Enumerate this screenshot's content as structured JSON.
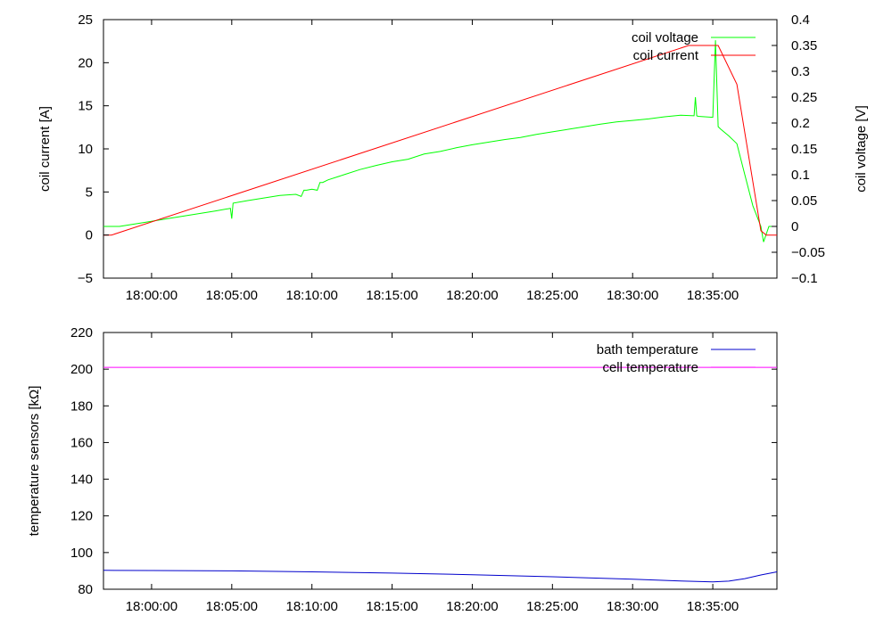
{
  "chart_data": [
    {
      "type": "line",
      "title": "",
      "xlabel": "",
      "ylabel": "coil current [A]",
      "y2label": "coil voltage [V]",
      "xlim": [
        "17:57:00",
        "18:39:00"
      ],
      "ylim": [
        -5,
        25
      ],
      "y2lim": [
        -0.1,
        0.4
      ],
      "x_ticks": [
        "18:00:00",
        "18:05:00",
        "18:10:00",
        "18:15:00",
        "18:20:00",
        "18:25:00",
        "18:30:00",
        "18:35:00"
      ],
      "y_ticks": [
        "−5",
        "0",
        "5",
        "10",
        "15",
        "20",
        "25"
      ],
      "y2_ticks": [
        "−0.1",
        "−0.05",
        "0",
        "0.05",
        "0.1",
        "0.15",
        "0.2",
        "0.25",
        "0.3",
        "0.35",
        "0.4"
      ],
      "legend_position": "top-right",
      "grid": false,
      "series": [
        {
          "name": "coil voltage",
          "axis": "y2",
          "color": "#00ff00",
          "x": [
            "17:57:00",
            "17:58:00",
            "17:59:00",
            "18:00:00",
            "18:01:00",
            "18:02:00",
            "18:03:00",
            "18:04:00",
            "18:04:55",
            "18:05:00",
            "18:05:05",
            "18:06:00",
            "18:07:00",
            "18:08:00",
            "18:09:00",
            "18:09:20",
            "18:09:30",
            "18:09:40",
            "18:10:00",
            "18:10:20",
            "18:10:30",
            "18:10:40",
            "18:11:00",
            "18:12:00",
            "18:13:00",
            "18:14:00",
            "18:15:00",
            "18:16:00",
            "18:17:00",
            "18:18:00",
            "18:19:00",
            "18:20:00",
            "18:21:00",
            "18:22:00",
            "18:23:00",
            "18:24:00",
            "18:25:00",
            "18:26:00",
            "18:27:00",
            "18:28:00",
            "18:29:00",
            "18:30:00",
            "18:31:00",
            "18:32:00",
            "18:33:00",
            "18:33:50",
            "18:33:55",
            "18:34:00",
            "18:34:05",
            "18:34:30",
            "18:35:00",
            "18:35:10",
            "18:35:20",
            "18:35:30",
            "18:36:00",
            "18:36:30",
            "18:37:00",
            "18:37:30",
            "18:38:00",
            "18:38:10",
            "18:38:20",
            "18:38:30",
            "18:39:00"
          ],
          "values": [
            0,
            0,
            0.005,
            0.01,
            0.015,
            0.02,
            0.025,
            0.03,
            0.035,
            0.015,
            0.045,
            0.05,
            0.055,
            0.06,
            0.062,
            0.058,
            0.07,
            0.07,
            0.072,
            0.07,
            0.085,
            0.085,
            0.09,
            0.1,
            0.11,
            0.118,
            0.125,
            0.13,
            0.14,
            0.145,
            0.152,
            0.158,
            0.163,
            0.168,
            0.172,
            0.178,
            0.183,
            0.188,
            0.193,
            0.198,
            0.202,
            0.205,
            0.208,
            0.212,
            0.215,
            0.214,
            0.25,
            0.214,
            0.213,
            0.212,
            0.211,
            0.36,
            0.193,
            0.188,
            0.175,
            0.16,
            0.1,
            0.04,
            0.0,
            -0.03,
            -0.015,
            -0.0,
            0.0
          ]
        },
        {
          "name": "coil current",
          "axis": "y",
          "color": "#ff0000",
          "x": [
            "17:57:00",
            "17:57:30",
            "18:33:30",
            "18:35:20",
            "18:36:30",
            "18:38:00",
            "18:38:20",
            "18:39:00"
          ],
          "values": [
            0,
            0,
            22,
            22,
            17.5,
            0.5,
            0,
            0
          ]
        }
      ]
    },
    {
      "type": "line",
      "title": "",
      "xlabel": "",
      "ylabel": "temperature sensors [kΩ]",
      "xlim": [
        "17:57:00",
        "18:39:00"
      ],
      "ylim": [
        80,
        220
      ],
      "x_ticks": [
        "18:00:00",
        "18:05:00",
        "18:10:00",
        "18:15:00",
        "18:20:00",
        "18:25:00",
        "18:30:00",
        "18:35:00"
      ],
      "y_ticks": [
        "80",
        "100",
        "120",
        "140",
        "160",
        "180",
        "200",
        "220"
      ],
      "legend_position": "top-right",
      "grid": false,
      "series": [
        {
          "name": "bath temperature",
          "color": "#0000cc",
          "x": [
            "17:57:00",
            "18:00:00",
            "18:05:00",
            "18:10:00",
            "18:15:00",
            "18:20:00",
            "18:25:00",
            "18:30:00",
            "18:33:00",
            "18:35:00",
            "18:36:00",
            "18:37:00",
            "18:38:00",
            "18:39:00"
          ],
          "values": [
            90.3,
            90.2,
            90,
            89.5,
            88.8,
            87.9,
            86.8,
            85.5,
            84.5,
            84,
            84.4,
            85.8,
            87.8,
            89.5
          ]
        },
        {
          "name": "cell temperature",
          "color": "#ff00ff",
          "x": [
            "17:57:00",
            "18:39:00"
          ],
          "values": [
            201,
            201
          ]
        }
      ]
    }
  ]
}
